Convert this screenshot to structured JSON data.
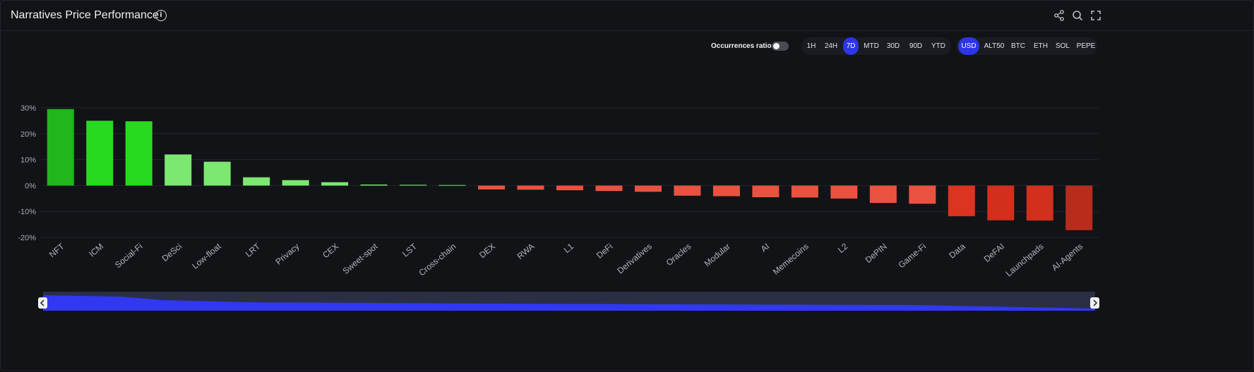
{
  "header": {
    "title": "Narratives Price Performance",
    "info_glyph": "i"
  },
  "toolbar": {
    "occurrences_label": "Occurrences ratio",
    "occurrences_on": false,
    "timeframes": [
      "1H",
      "24H",
      "7D",
      "MTD",
      "30D",
      "90D",
      "YTD"
    ],
    "timeframe_active": "7D",
    "currencies": [
      "USD",
      "ALT50",
      "BTC",
      "ETH",
      "SOL",
      "PEPE"
    ],
    "currency_active": "USD"
  },
  "colors": {
    "accent": "#2d35e6"
  },
  "chart_data": {
    "type": "bar",
    "categories": [
      "NFT",
      "ICM",
      "Social-Fi",
      "DeSci",
      "Low-float",
      "LRT",
      "Privacy",
      "CEX",
      "Sweet-spot",
      "LST",
      "Cross-chain",
      "DEX",
      "RWA",
      "L1",
      "DeFi",
      "Derivatives",
      "Oracles",
      "Modular",
      "AI",
      "Memecoins",
      "L2",
      "DePIN",
      "Game-Fi",
      "Data",
      "DeFAI",
      "Launchpads",
      "AI-Agents"
    ],
    "values": [
      29.5,
      25,
      24.8,
      12,
      9.2,
      3.2,
      2.1,
      1.3,
      0.4,
      0.3,
      0.2,
      -1.5,
      -1.6,
      -1.8,
      -2.1,
      -2.4,
      -3.9,
      -4.1,
      -4.5,
      -4.6,
      -5,
      -6.7,
      -7,
      -11.8,
      -13.4,
      -13.5,
      -17.2
    ],
    "colors": [
      "#20b61c",
      "#27da20",
      "#27da20",
      "#7ce871",
      "#7ce871",
      "#7ce871",
      "#7ce871",
      "#7ce871",
      "#7ce871",
      "#7ce871",
      "#7ce871",
      "#ea5240",
      "#ea5240",
      "#ea5240",
      "#ea5240",
      "#ea5240",
      "#ea5240",
      "#ea5240",
      "#ea5240",
      "#ea5240",
      "#ea5240",
      "#ea5240",
      "#ea5240",
      "#dc3420",
      "#d0301c",
      "#d0301c",
      "#b82c1c"
    ],
    "yticks": [
      "30%",
      "20%",
      "10%",
      "0%",
      "-10%",
      "-20%"
    ],
    "ylim": [
      -20,
      30
    ],
    "grid": true
  }
}
